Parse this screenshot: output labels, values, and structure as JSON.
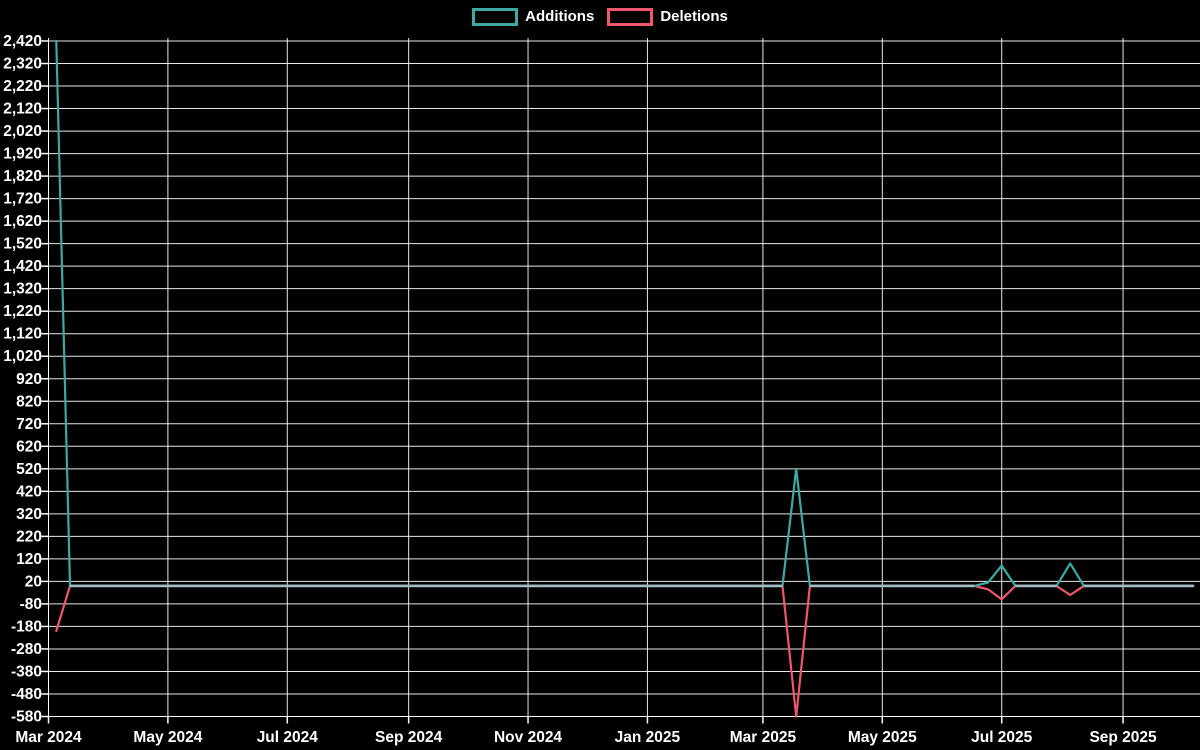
{
  "page": {
    "background": "#000000"
  },
  "legend": {
    "items": [
      {
        "label": "Additions",
        "color": "#3fa8a2"
      },
      {
        "label": "Deletions",
        "color": "#f0566e"
      }
    ]
  },
  "chart_data": {
    "type": "line",
    "title": "",
    "legend_position": "top-center",
    "grid": true,
    "background": "#000000",
    "text_color": "#ffffff",
    "grid_color": "#ffffff",
    "overlap_color": "#a3bcc5",
    "y_axis": {
      "min": -580,
      "max": 2420,
      "step": 100,
      "tick_labels": [
        "2,420",
        "2,320",
        "2,220",
        "2,120",
        "2,020",
        "1,920",
        "1,820",
        "1,720",
        "1,620",
        "1,520",
        "1,420",
        "1,320",
        "1,220",
        "1,120",
        "1,020",
        "920",
        "820",
        "720",
        "620",
        "520",
        "420",
        "320",
        "220",
        "120",
        "20",
        "-80",
        "-180",
        "-280",
        "-380",
        "-480",
        "-580"
      ]
    },
    "x_axis": {
      "start": "2024-03-01",
      "end": "2025-10-08",
      "ticks": [
        {
          "label": "Mar 2024",
          "date": "2024-03-01"
        },
        {
          "label": "May 2024",
          "date": "2024-05-01"
        },
        {
          "label": "Jul 2024",
          "date": "2024-07-01"
        },
        {
          "label": "Sep 2024",
          "date": "2024-09-01"
        },
        {
          "label": "Nov 2024",
          "date": "2024-11-01"
        },
        {
          "label": "Jan 2025",
          "date": "2025-01-01"
        },
        {
          "label": "Mar 2025",
          "date": "2025-03-01"
        },
        {
          "label": "May 2025",
          "date": "2025-05-01"
        },
        {
          "label": "Jul 2025",
          "date": "2025-07-01"
        },
        {
          "label": "Sep 2025",
          "date": "2025-09-01"
        }
      ]
    },
    "series": [
      {
        "name": "Additions",
        "color": "#3fa8a2",
        "points": [
          [
            "2024-03-05",
            2420
          ],
          [
            "2024-03-12",
            0
          ],
          [
            "2025-03-11",
            0
          ],
          [
            "2025-03-18",
            520
          ],
          [
            "2025-03-25",
            0
          ],
          [
            "2025-06-17",
            0
          ],
          [
            "2025-06-24",
            15
          ],
          [
            "2025-07-01",
            90
          ],
          [
            "2025-07-08",
            0
          ],
          [
            "2025-07-29",
            0
          ],
          [
            "2025-08-05",
            100
          ],
          [
            "2025-08-12",
            0
          ],
          [
            "2025-10-07",
            0
          ]
        ]
      },
      {
        "name": "Deletions",
        "color": "#f0566e",
        "points": [
          [
            "2024-03-05",
            -200
          ],
          [
            "2024-03-12",
            0
          ],
          [
            "2025-03-11",
            0
          ],
          [
            "2025-03-18",
            -580
          ],
          [
            "2025-03-25",
            0
          ],
          [
            "2025-06-17",
            0
          ],
          [
            "2025-06-24",
            -15
          ],
          [
            "2025-07-01",
            -60
          ],
          [
            "2025-07-08",
            0
          ],
          [
            "2025-07-29",
            0
          ],
          [
            "2025-08-05",
            -40
          ],
          [
            "2025-08-12",
            0
          ],
          [
            "2025-10-07",
            0
          ]
        ]
      }
    ]
  }
}
